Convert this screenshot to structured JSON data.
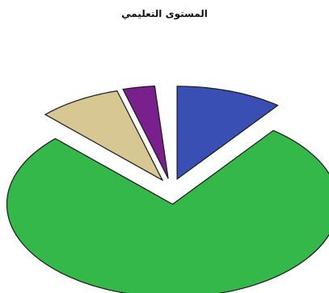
{
  "chart_data": {
    "type": "pie",
    "title": "المستوى التعليمي",
    "series": [
      {
        "share": 0.104,
        "color": "#3a4fb3"
      },
      {
        "share": 0.771,
        "color": "#35b84a"
      },
      {
        "share": 0.081,
        "color": "#d6c793"
      },
      {
        "share": 0.031,
        "color": "#7a208c"
      }
    ],
    "start_angle_deg": 0,
    "exploded": true,
    "view": "3d-oblique"
  }
}
